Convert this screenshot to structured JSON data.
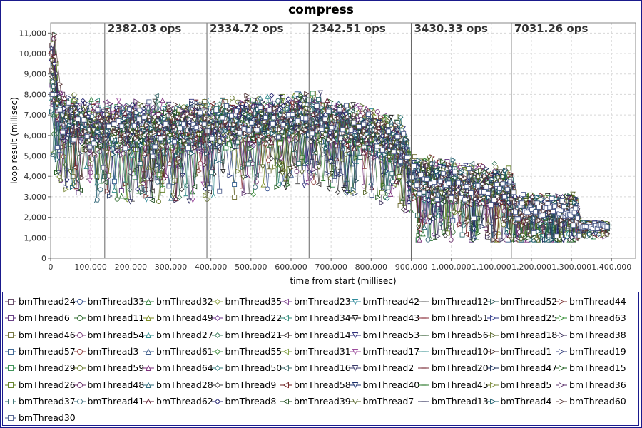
{
  "chart_data": {
    "type": "line",
    "title": "compress",
    "xlabel": "time from start (millisec)",
    "ylabel": "loop result (millisec)",
    "xlim": [
      0,
      1460000
    ],
    "ylim": [
      0,
      11500
    ],
    "x_ticks": [
      0,
      100000,
      200000,
      300000,
      400000,
      500000,
      600000,
      700000,
      800000,
      900000,
      1000000,
      1100000,
      1200000,
      1300000,
      1400000
    ],
    "x_tick_labels": [
      "0",
      "100,000",
      "200,000",
      "300,000",
      "400,000",
      "500,000",
      "600,000",
      "700,000",
      "800,000",
      "900,000",
      "1,000,000",
      "1,100,000",
      "1,200,000",
      "1,300,000",
      "1,400,000"
    ],
    "y_ticks": [
      0,
      1000,
      2000,
      3000,
      4000,
      5000,
      6000,
      7000,
      8000,
      9000,
      10000,
      11000
    ],
    "y_tick_labels": [
      "0",
      "1,000",
      "2,000",
      "3,000",
      "4,000",
      "5,000",
      "6,000",
      "7,000",
      "8,000",
      "9,000",
      "10,000",
      "11,000"
    ],
    "grid": true,
    "legend_position": "bottom",
    "phases": [
      {
        "start": 0,
        "end": 135000,
        "ops_label": ""
      },
      {
        "start": 135000,
        "end": 390000,
        "ops_label": "2382.03 ops"
      },
      {
        "start": 390000,
        "end": 645000,
        "ops_label": "2334.72 ops"
      },
      {
        "start": 645000,
        "end": 900000,
        "ops_label": "2342.51 ops"
      },
      {
        "start": 900000,
        "end": 1150000,
        "ops_label": "3430.33 ops"
      },
      {
        "start": 1150000,
        "end": 1390000,
        "ops_label": "7031.26 ops"
      }
    ],
    "level_profile": [
      {
        "x": 0,
        "mean": 8500,
        "spread": 1400
      },
      {
        "x": 30000,
        "mean": 6800,
        "spread": 1300
      },
      {
        "x": 135000,
        "mean": 6300,
        "spread": 1300
      },
      {
        "x": 390000,
        "mean": 6400,
        "spread": 1300
      },
      {
        "x": 645000,
        "mean": 6900,
        "spread": 1200
      },
      {
        "x": 880000,
        "mean": 5600,
        "spread": 1200
      },
      {
        "x": 900000,
        "mean": 3900,
        "spread": 1100
      },
      {
        "x": 1150000,
        "mean": 3300,
        "spread": 1000
      },
      {
        "x": 1160000,
        "mean": 2300,
        "spread": 700
      },
      {
        "x": 1310000,
        "mean": 2400,
        "spread": 700
      },
      {
        "x": 1320000,
        "mean": 1550,
        "spread": 180
      },
      {
        "x": 1390000,
        "mean": 1550,
        "spread": 180
      }
    ],
    "series_names": [
      "bmThread24",
      "bmThread33",
      "bmThread32",
      "bmThread35",
      "bmThread23",
      "bmThread42",
      "bmThread12",
      "bmThread52",
      "bmThread44",
      "bmThread6",
      "bmThread11",
      "bmThread49",
      "bmThread22",
      "bmThread34",
      "bmThread43",
      "bmThread51",
      "bmThread25",
      "bmThread63",
      "bmThread46",
      "bmThread54",
      "bmThread27",
      "bmThread21",
      "bmThread14",
      "bmThread53",
      "bmThread56",
      "bmThread18",
      "bmThread38",
      "bmThread57",
      "bmThread3",
      "bmThread61",
      "bmThread55",
      "bmThread31",
      "bmThread17",
      "bmThread10",
      "bmThread1",
      "bmThread19",
      "bmThread29",
      "bmThread59",
      "bmThread64",
      "bmThread50",
      "bmThread16",
      "bmThread2",
      "bmThread20",
      "bmThread47",
      "bmThread15",
      "bmThread26",
      "bmThread48",
      "bmThread28",
      "bmThread9",
      "bmThread58",
      "bmThread40",
      "bmThread45",
      "bmThread5",
      "bmThread36",
      "bmThread37",
      "bmThread41",
      "bmThread62",
      "bmThread8",
      "bmThread39",
      "bmThread7",
      "bmThread13",
      "bmThread4",
      "bmThread60",
      "bmThread30"
    ],
    "series_colors": [
      "#5a3d5c",
      "#2e4a8a",
      "#2f7a3a",
      "#8aa040",
      "#7a3d8a",
      "#2f8a9a",
      "#6b6b6b",
      "#2e5a5a",
      "#7a2e2e",
      "#5a2e7a",
      "#2e6a2e",
      "#7a8a20",
      "#6a2e8a",
      "#2e8a7a",
      "#1a1a1a",
      "#8a2e3a",
      "#2e3a8a",
      "#2e8a2e",
      "#6a6a2e",
      "#7a3a7a",
      "#2e8a8a",
      "#3a7a5a",
      "#3a2e2e",
      "#2e2e7a",
      "#2e5a2e",
      "#5a6a2e",
      "#3a2e5a",
      "#2e5a8a",
      "#8a3a3a",
      "#3a5a8a",
      "#3a8a3a",
      "#7a9a3a",
      "#9a4a9a",
      "#4a9a9a",
      "#4a2e2e",
      "#2e3a7a",
      "#2e8a4a",
      "#6a7a2e",
      "#7a2e7a",
      "#2e7a7a",
      "#3a6a6a",
      "#3a3a6a",
      "#7a2e3a",
      "#1a2e5a",
      "#1a5a1a",
      "#5a7a1a",
      "#6a2e6a",
      "#2e6a7a",
      "#3a3a3a",
      "#6a1a1a",
      "#1a2e6a",
      "#2e7a2e",
      "#7a8a3a",
      "#5a2e6a",
      "#2e6a6a",
      "#3a6a7a",
      "#5a1a2e",
      "#1a1a6a",
      "#1a4a1a",
      "#4a5a1a",
      "#2e2e5a",
      "#1a5a6a",
      "#5a3a3a",
      "#4a5a8a"
    ],
    "marker_shapes": [
      "square",
      "circle",
      "triangle-up",
      "diamond",
      "triangle-left",
      "triangle-down",
      "line",
      "triangle-right",
      "triangle-right"
    ]
  }
}
